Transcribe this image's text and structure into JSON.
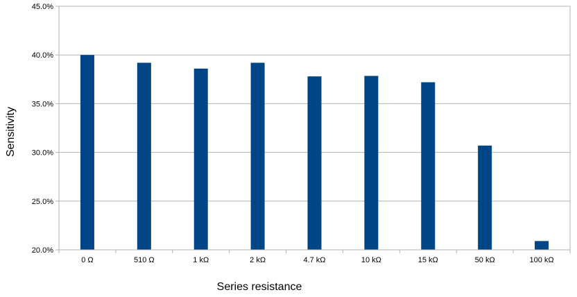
{
  "chart_data": {
    "type": "bar",
    "title": "",
    "xlabel": "Series resistance",
    "ylabel": "Sensitivity",
    "categories": [
      "0 Ω",
      "510 Ω",
      "1 kΩ",
      "2 kΩ",
      "4.7 kΩ",
      "10 kΩ",
      "15 kΩ",
      "50 kΩ",
      "100 kΩ"
    ],
    "values": [
      40.0,
      39.2,
      38.6,
      39.2,
      37.8,
      37.85,
      37.2,
      30.7,
      20.9
    ],
    "ylim": [
      20,
      45
    ],
    "yticks": [
      "20.0%",
      "25.0%",
      "30.0%",
      "35.0%",
      "40.0%",
      "45.0%"
    ],
    "grid": true,
    "bar_color": "#004586",
    "grid_color": "#b3b3b3"
  }
}
